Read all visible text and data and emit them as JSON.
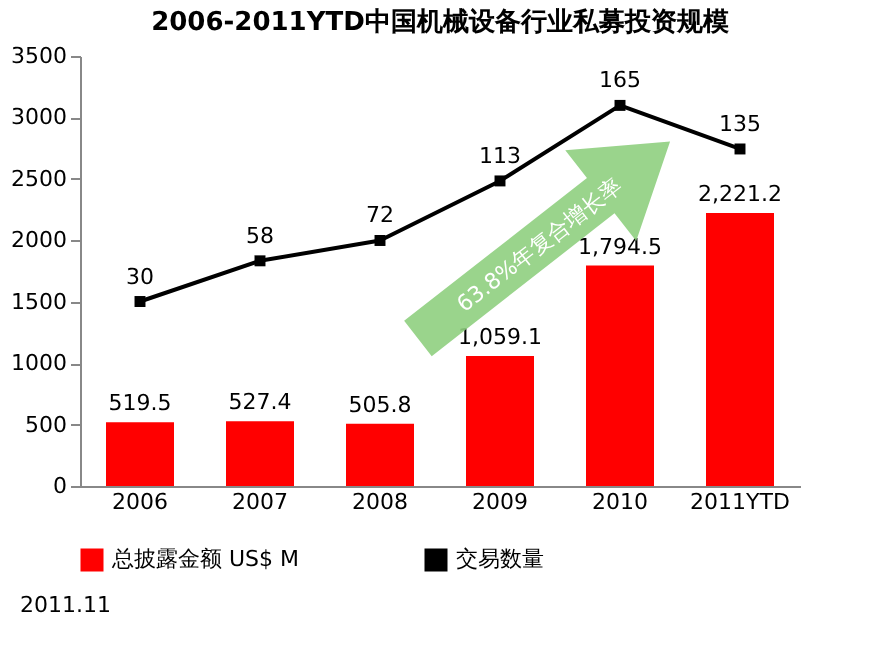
{
  "chart_data": {
    "type": "bar",
    "title": "2006-2011YTD中国机械设备行业私募投资规模",
    "categories": [
      "2006",
      "2007",
      "2008",
      "2009",
      "2010",
      "2011YTD"
    ],
    "series": [
      {
        "name": "总披露金额 US$ M",
        "color": "#ff0000",
        "values": [
          519.5,
          527.4,
          505.8,
          1059.1,
          1794.5,
          2221.2
        ],
        "value_labels": [
          "519.5",
          "527.4",
          "505.8",
          "1,059.1",
          "1,794.5",
          "2,221.2"
        ]
      },
      {
        "name": "交易数量",
        "color": "#000000",
        "type": "line",
        "axis": "y2",
        "marker": "square",
        "values": [
          30,
          58,
          72,
          113,
          165,
          135
        ],
        "value_labels": [
          "30",
          "58",
          "72",
          "113",
          "165",
          "135"
        ]
      }
    ],
    "ylim": [
      0,
      3500
    ],
    "yticks": [
      0,
      500,
      1000,
      1500,
      2000,
      2500,
      3000,
      3500
    ],
    "y2lim": [
      -97,
      199
    ],
    "grid": false,
    "legend": "bottom",
    "annotations": [
      "63.8%年复合增长率",
      "2011.11"
    ]
  }
}
